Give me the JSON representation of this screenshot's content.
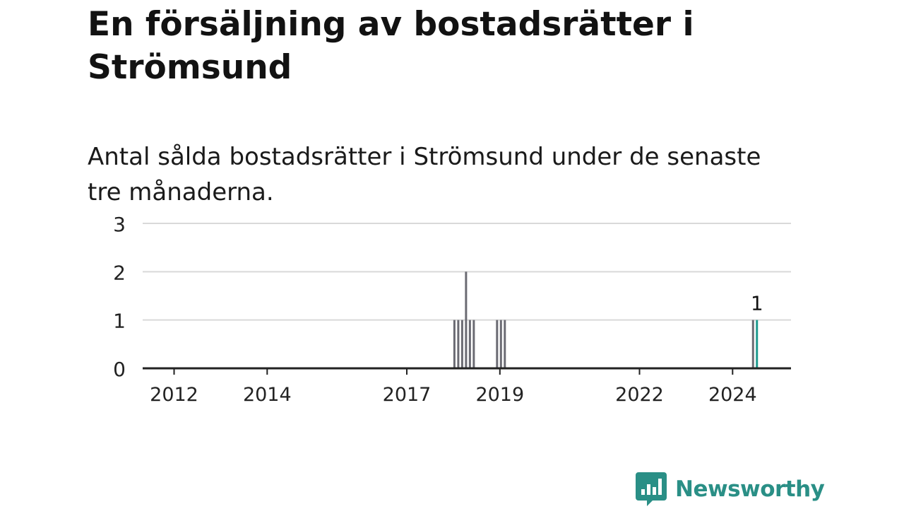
{
  "title": "En försäljning av bostadsrätter i Strömsund",
  "subtitle": "Antal sålda bostadsrätter i Strömsund under de senaste tre månaderna.",
  "colors": {
    "bar": "#6b6b73",
    "highlight": "#1d9a8e",
    "gridline": "#d9d9d9",
    "axis": "#222222",
    "brand": "#2a8f86"
  },
  "brand": {
    "name": "Newsworthy",
    "icon": "newsworthy-logo-icon"
  },
  "chart_data": {
    "type": "bar",
    "title": "",
    "xlabel": "",
    "ylabel": "",
    "ylim": [
      0,
      3
    ],
    "y_ticks": [
      "0",
      "1",
      "2",
      "3"
    ],
    "x_ticks": [
      "2012",
      "2014",
      "2017",
      "2019",
      "2022",
      "2024"
    ],
    "grid": true,
    "x": [
      "2018-01",
      "2018-02",
      "2018-03",
      "2018-04",
      "2018-05",
      "2018-06",
      "2018-12",
      "2019-01",
      "2019-02",
      "2024-06",
      "2024-07"
    ],
    "values": [
      1,
      1,
      1,
      2,
      1,
      1,
      1,
      1,
      1,
      1,
      1
    ],
    "highlight_index": 10,
    "annotation": "1"
  }
}
